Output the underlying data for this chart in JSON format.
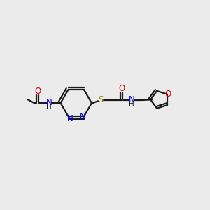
{
  "bg_color": "#ebebeb",
  "bond_color": "#1a1a1a",
  "N_color": "#0000ee",
  "O_color": "#dd0000",
  "S_color": "#888800",
  "lw": 1.6,
  "dfs": 8.5,
  "figsize": [
    3.0,
    3.0
  ],
  "dpi": 100,
  "xlim": [
    -5.0,
    5.5
  ],
  "ylim": [
    -3.2,
    3.2
  ]
}
